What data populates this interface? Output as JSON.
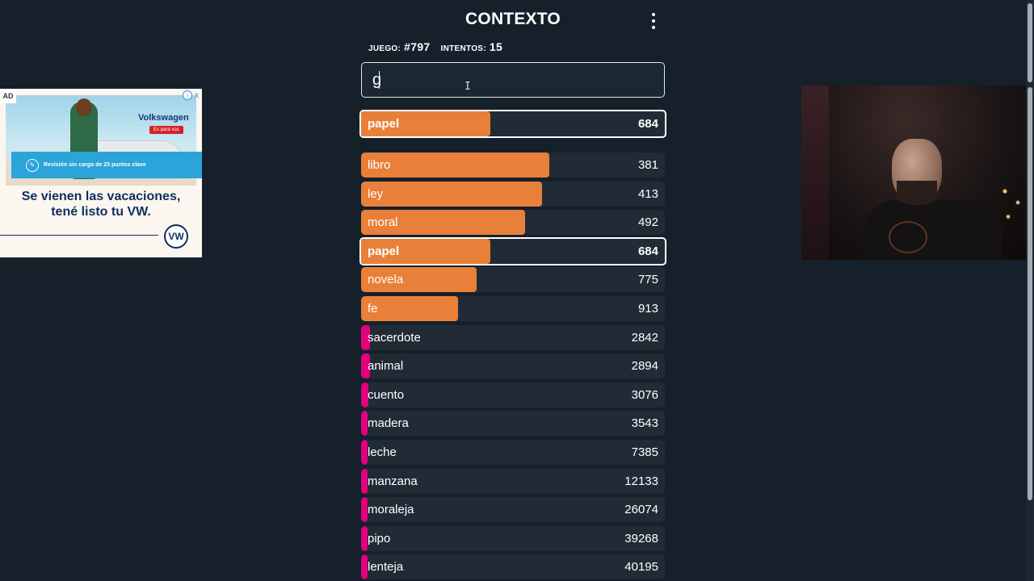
{
  "app": {
    "title": "CONTEXTO"
  },
  "stats": {
    "game_label": "JUEGO:",
    "game_value": "#797",
    "attempts_label": "INTENTOS:",
    "attempts_value": "15"
  },
  "input": {
    "value": "g"
  },
  "colors": {
    "close": "#e8803a",
    "far": "#e3007d",
    "row_bg": "#212b36",
    "page_bg": "#15202b"
  },
  "last_guess": {
    "word": "papel",
    "distance": "684",
    "fill": 0.425,
    "color": "close"
  },
  "guesses": [
    {
      "word": "libro",
      "distance": "381",
      "fill": 0.62,
      "color": "close",
      "selected": false
    },
    {
      "word": "ley",
      "distance": "413",
      "fill": 0.595,
      "color": "close",
      "selected": false
    },
    {
      "word": "moral",
      "distance": "492",
      "fill": 0.54,
      "color": "close",
      "selected": false
    },
    {
      "word": "papel",
      "distance": "684",
      "fill": 0.425,
      "color": "close",
      "selected": true
    },
    {
      "word": "novela",
      "distance": "775",
      "fill": 0.38,
      "color": "close",
      "selected": false
    },
    {
      "word": "fe",
      "distance": "913",
      "fill": 0.32,
      "color": "close",
      "selected": false
    },
    {
      "word": "sacerdote",
      "distance": "2842",
      "fill": 0.03,
      "color": "far",
      "selected": false
    },
    {
      "word": "animal",
      "distance": "2894",
      "fill": 0.028,
      "color": "far",
      "selected": false
    },
    {
      "word": "cuento",
      "distance": "3076",
      "fill": 0.024,
      "color": "far",
      "selected": false
    },
    {
      "word": "madera",
      "distance": "3543",
      "fill": 0.012,
      "color": "far",
      "selected": false
    },
    {
      "word": "leche",
      "distance": "7385",
      "fill": 0.01,
      "color": "far",
      "selected": false
    },
    {
      "word": "manzana",
      "distance": "12133",
      "fill": 0.01,
      "color": "far",
      "selected": false
    },
    {
      "word": "moraleja",
      "distance": "26074",
      "fill": 0.01,
      "color": "far",
      "selected": false
    },
    {
      "word": "pipo",
      "distance": "39268",
      "fill": 0.01,
      "color": "far",
      "selected": false
    },
    {
      "word": "lenteja",
      "distance": "40195",
      "fill": 0.01,
      "color": "far",
      "selected": false
    }
  ],
  "ad": {
    "label": "AD",
    "info_icon": "i",
    "close_icon": "x",
    "brand": "Volkswagen",
    "tagline": "Es para vos",
    "banner_text": "Revisión sin cargo de 25 puntos clave",
    "headline_1": "Se vienen las vacaciones,",
    "headline_2": "tené listo tu VW.",
    "logo": "VW"
  }
}
